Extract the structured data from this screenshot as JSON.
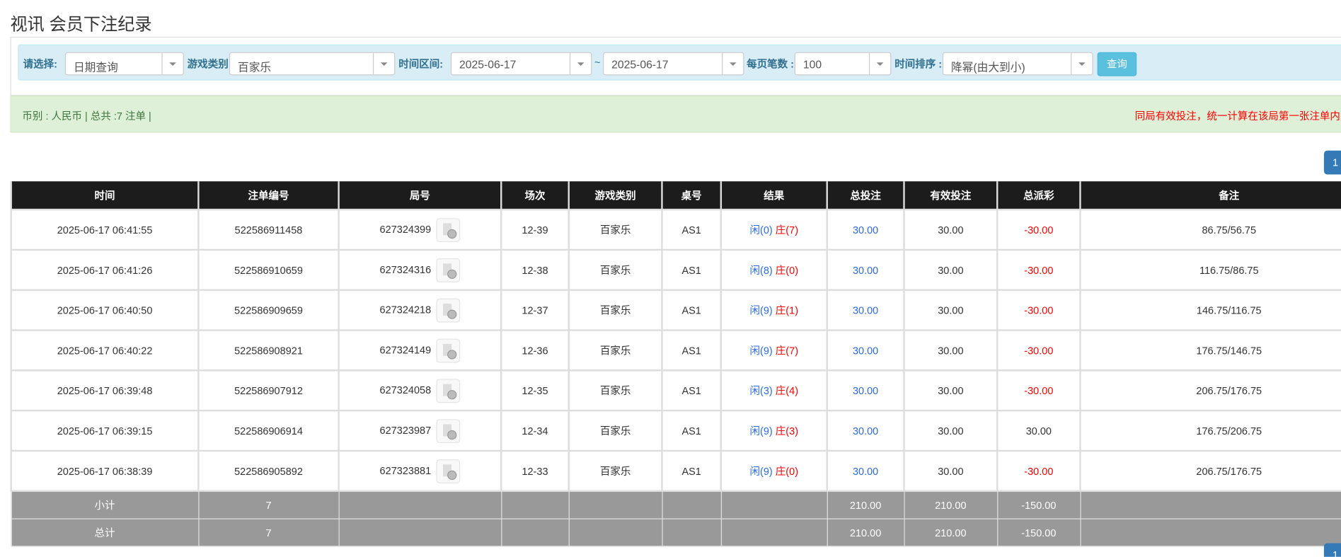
{
  "title": "视讯 会员下注纪录",
  "filters": {
    "select_label": "请选择:",
    "select_value": "日期查询",
    "game_label": "游戏类别",
    "game_value": "百家乐",
    "time_label": "时间区间:",
    "date_from": "2025-06-17",
    "tilde": "~",
    "date_to": "2025-06-17",
    "per_page_label": "每页笔数 :",
    "per_page_value": "100",
    "sort_label": "时间排序 :",
    "sort_value": "降幂(由大到小)",
    "query_button": "查询"
  },
  "summary": {
    "left": "币别 : 人民币 | 总共 :7 注单 |",
    "right": "同局有效投注，统一计算在该局第一张注单内"
  },
  "pagination": {
    "current": "1"
  },
  "table": {
    "headers": [
      "时间",
      "注单编号",
      "局号",
      "场次",
      "游戏类别",
      "桌号",
      "结果",
      "总投注",
      "有效投注",
      "总派彩",
      "备注"
    ],
    "rows": [
      {
        "time": "2025-06-17 06:41:55",
        "bet_id": "522586911458",
        "round": "627324399",
        "shoe": "12-39",
        "game": "百家乐",
        "table": "AS1",
        "player": "闲(0)",
        "banker": "庄(7)",
        "total": "30.00",
        "valid": "30.00",
        "payout": "-30.00",
        "note": "86.75/56.75"
      },
      {
        "time": "2025-06-17 06:41:26",
        "bet_id": "522586910659",
        "round": "627324316",
        "shoe": "12-38",
        "game": "百家乐",
        "table": "AS1",
        "player": "闲(8)",
        "banker": "庄(0)",
        "total": "30.00",
        "valid": "30.00",
        "payout": "-30.00",
        "note": "116.75/86.75"
      },
      {
        "time": "2025-06-17 06:40:50",
        "bet_id": "522586909659",
        "round": "627324218",
        "shoe": "12-37",
        "game": "百家乐",
        "table": "AS1",
        "player": "闲(9)",
        "banker": "庄(1)",
        "total": "30.00",
        "valid": "30.00",
        "payout": "-30.00",
        "note": "146.75/116.75"
      },
      {
        "time": "2025-06-17 06:40:22",
        "bet_id": "522586908921",
        "round": "627324149",
        "shoe": "12-36",
        "game": "百家乐",
        "table": "AS1",
        "player": "闲(9)",
        "banker": "庄(7)",
        "total": "30.00",
        "valid": "30.00",
        "payout": "-30.00",
        "note": "176.75/146.75"
      },
      {
        "time": "2025-06-17 06:39:48",
        "bet_id": "522586907912",
        "round": "627324058",
        "shoe": "12-35",
        "game": "百家乐",
        "table": "AS1",
        "player": "闲(3)",
        "banker": "庄(4)",
        "total": "30.00",
        "valid": "30.00",
        "payout": "-30.00",
        "note": "206.75/176.75"
      },
      {
        "time": "2025-06-17 06:39:15",
        "bet_id": "522586906914",
        "round": "627323987",
        "shoe": "12-34",
        "game": "百家乐",
        "table": "AS1",
        "player": "闲(9)",
        "banker": "庄(3)",
        "total": "30.00",
        "valid": "30.00",
        "payout": "30.00",
        "note": "176.75/206.75"
      },
      {
        "time": "2025-06-17 06:38:39",
        "bet_id": "522586905892",
        "round": "627323881",
        "shoe": "12-33",
        "game": "百家乐",
        "table": "AS1",
        "player": "闲(9)",
        "banker": "庄(0)",
        "total": "30.00",
        "valid": "30.00",
        "payout": "-30.00",
        "note": "206.75/176.75"
      }
    ],
    "subtotal": {
      "label": "小计",
      "count": "7",
      "total": "210.00",
      "valid": "210.00",
      "payout": "-150.00"
    },
    "grandtotal": {
      "label": "总计",
      "count": "7",
      "total": "210.00",
      "valid": "210.00",
      "payout": "-150.00"
    }
  },
  "colors": {
    "header_bg": "#1c1c1c",
    "filter_bg": "#d9edf7",
    "summary_bg": "#dff0d8",
    "query_button": "#5bc0de",
    "page_button": "#337ab7",
    "player": "#2a6ae9",
    "banker_negative": "#ff0000",
    "sum_row": "#999999"
  }
}
